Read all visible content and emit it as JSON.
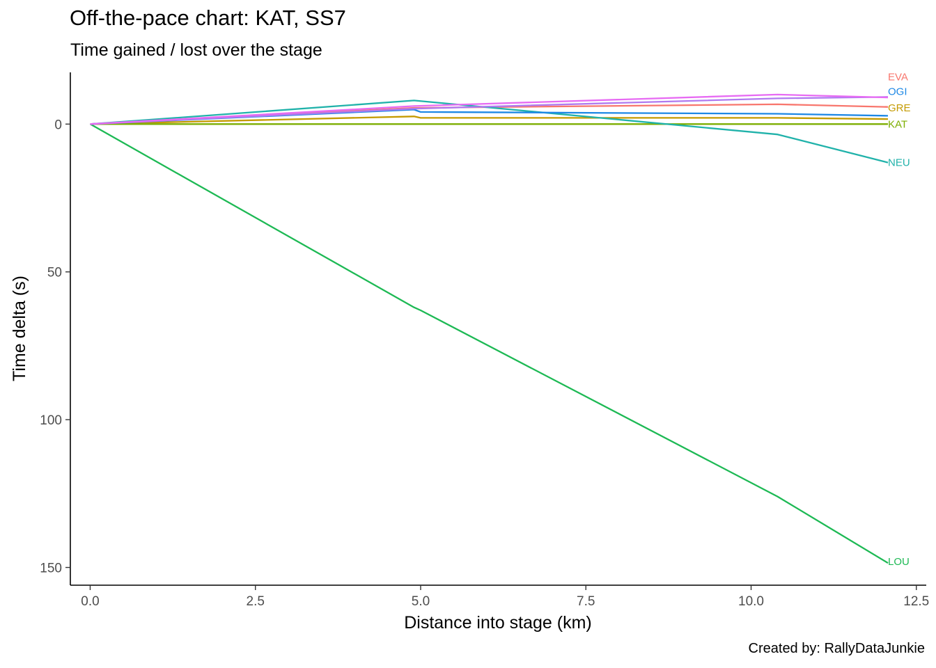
{
  "chart_data": {
    "type": "line",
    "title": "Off-the-pace chart: KAT, SS7",
    "subtitle": "Time gained / lost over the stage",
    "xlabel": "Distance into stage (km)",
    "ylabel": "Time delta (s)",
    "caption": "Created by: RallyDataJunkie",
    "xlim": [
      -0.3,
      12.65
    ],
    "ylim": [
      -17.5,
      156
    ],
    "y_reversed": true,
    "grid": false,
    "legend": "direct labels at line ends",
    "xticks": [
      0,
      2.5,
      5,
      7.5,
      10,
      12.5
    ],
    "xtick_labels": [
      "0.0",
      "2.5",
      "5.0",
      "7.5",
      "10.0",
      "12.5"
    ],
    "yticks": [
      0,
      50,
      100,
      150
    ],
    "ytick_labels": [
      "0",
      "50",
      "100",
      "150"
    ],
    "series": [
      {
        "name": "EVA",
        "color": "#F8766D",
        "label_y": -16,
        "x": [
          0,
          4.9,
          10.4,
          12.07
        ],
        "y": [
          0,
          -5.5,
          -6.7,
          -5.8
        ]
      },
      {
        "name": "GRE",
        "color": "#C49A00",
        "label_y": -5.5,
        "x": [
          0,
          4.9,
          5.0,
          10.4,
          12.07
        ],
        "y": [
          0,
          -2.6,
          -2.1,
          -2.1,
          -1.7
        ]
      },
      {
        "name": "KAT",
        "color": "#7CAE00",
        "label_y": 0,
        "x": [
          0,
          12.07
        ],
        "y": [
          0,
          0
        ]
      },
      {
        "name": "LOU",
        "color": "#1DB954",
        "label_y": 148,
        "x": [
          0,
          4.9,
          5.0,
          10.4,
          12.07
        ],
        "y": [
          0,
          62,
          63,
          126,
          148.5
        ]
      },
      {
        "name": "NEU",
        "color": "#20B2AA",
        "label_y": 13,
        "x": [
          0,
          4.9,
          10.4,
          12.07
        ],
        "y": [
          0,
          -8,
          3.5,
          13
        ]
      },
      {
        "name": "OGI",
        "color": "#1E88E5",
        "label_y": -11,
        "x": [
          0,
          4.9,
          5.0,
          10.4,
          12.07
        ],
        "y": [
          0,
          -4.9,
          -4.1,
          -3.5,
          -2.8
        ]
      },
      {
        "name": "",
        "color": "#B07AF0",
        "x": [
          0,
          4.9,
          10.4,
          12.07
        ],
        "y": [
          0,
          -5.2,
          -8.7,
          -9.2
        ]
      },
      {
        "name": "",
        "color": "#E76BF3",
        "x": [
          0,
          4.9,
          10.4,
          12.07
        ],
        "y": [
          0,
          -6.1,
          -10,
          -9
        ]
      }
    ]
  }
}
